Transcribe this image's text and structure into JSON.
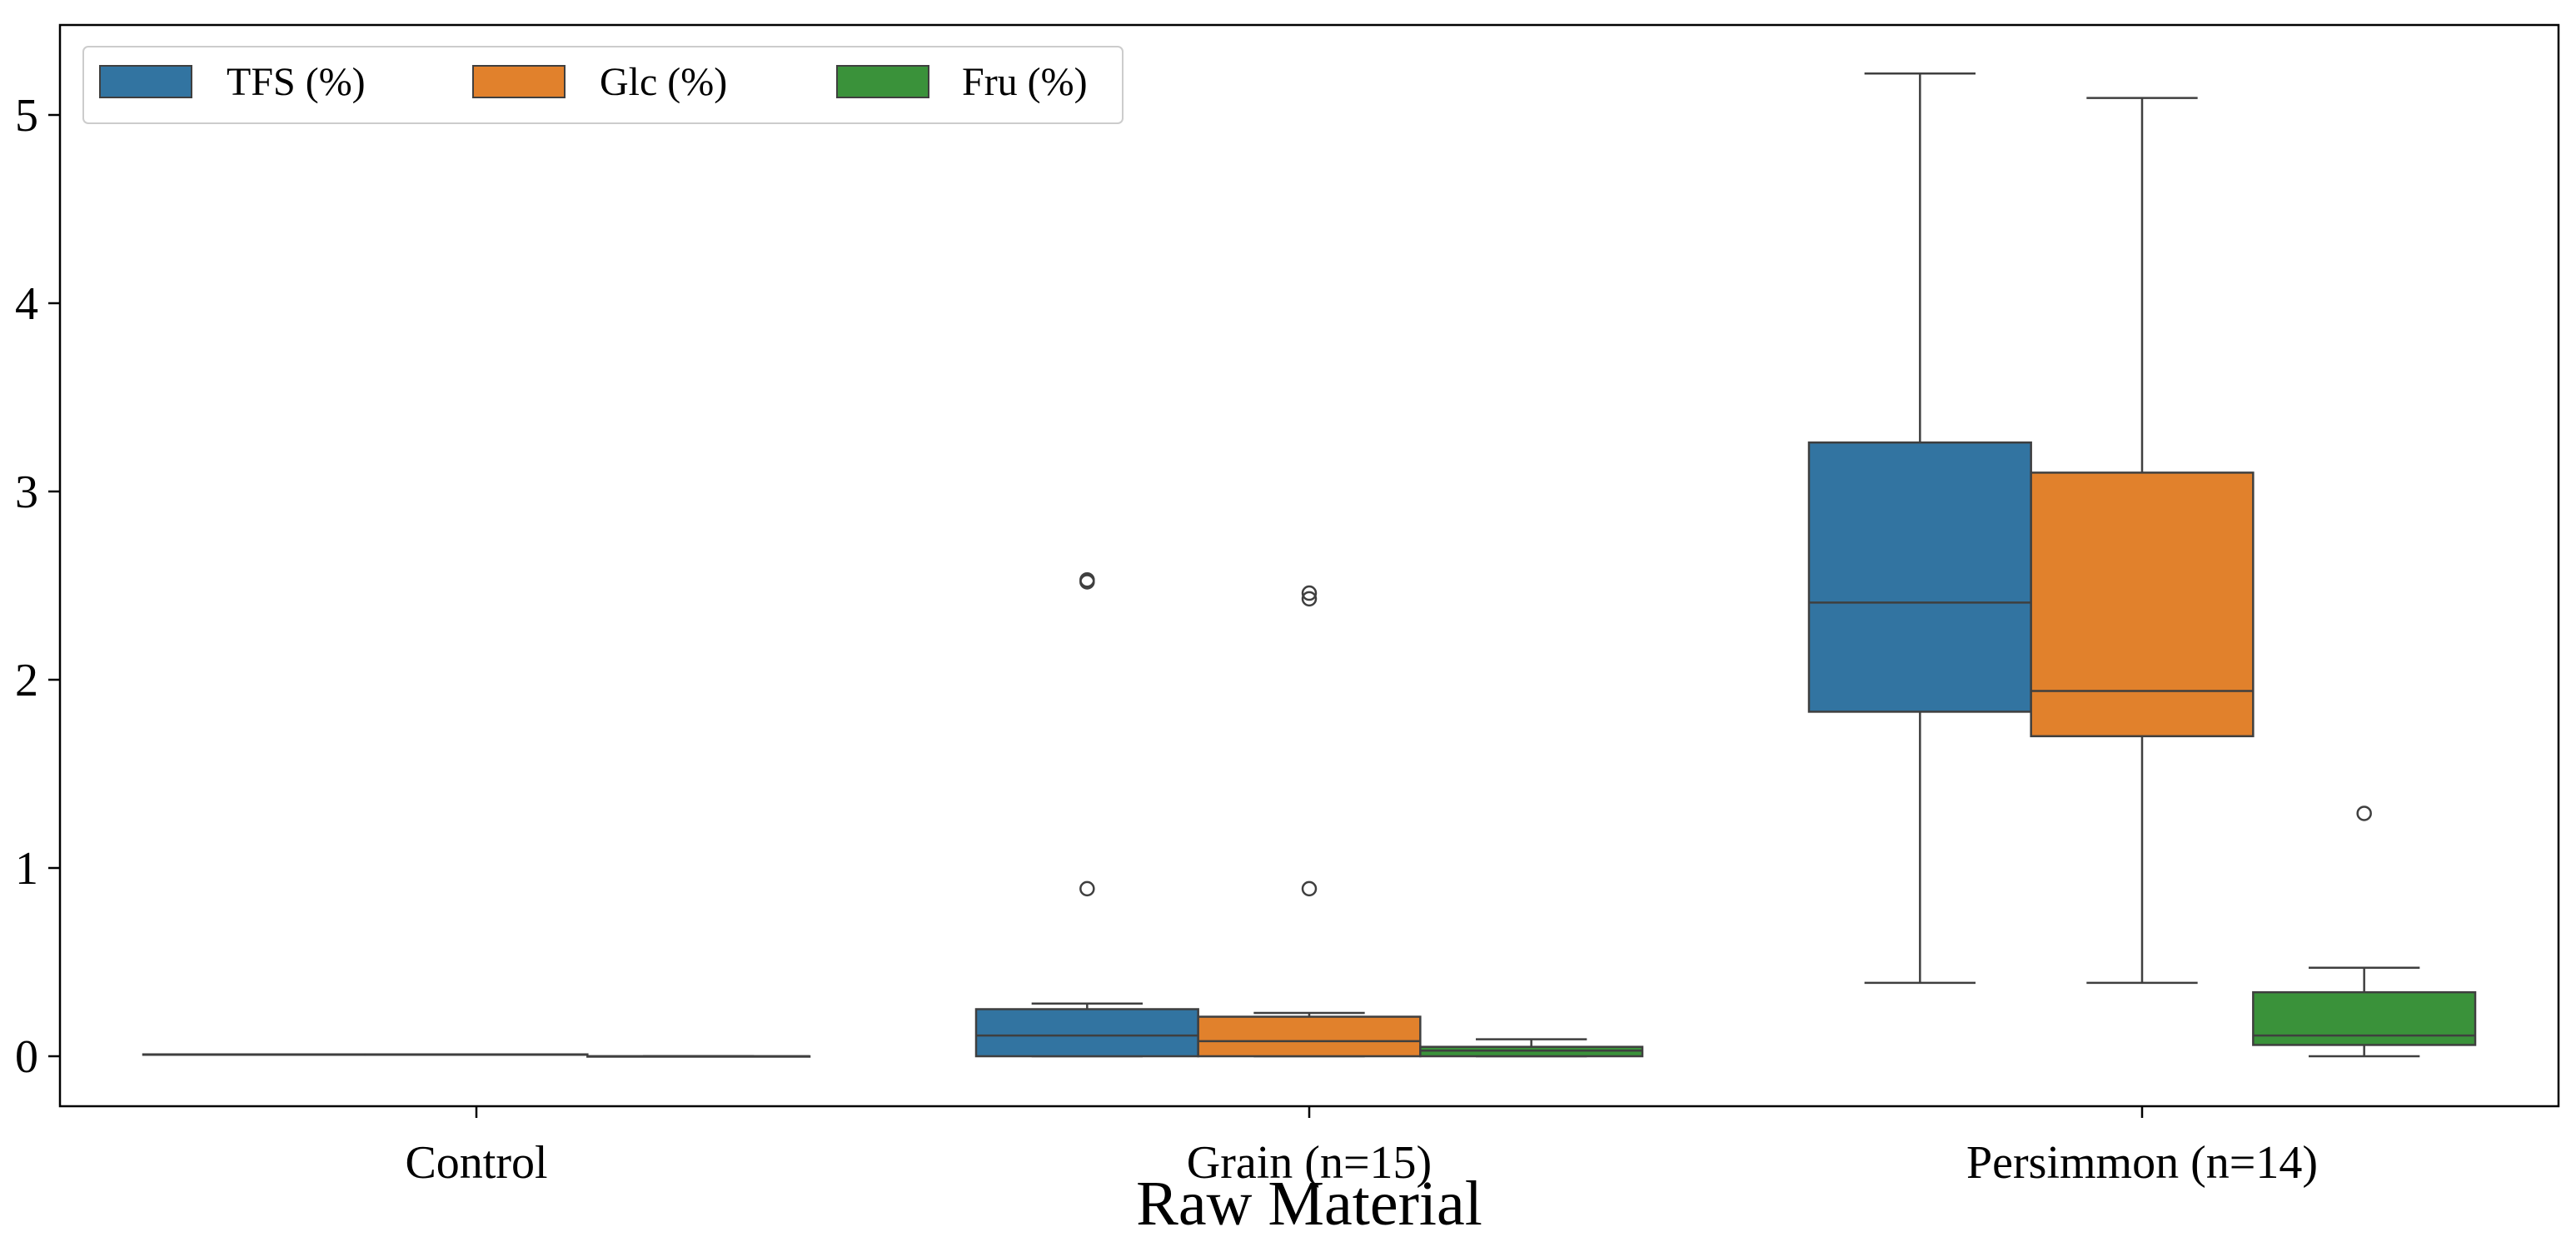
{
  "chart_data": {
    "type": "box",
    "title": "",
    "xlabel": "Raw Material",
    "ylabel": "",
    "ylim": [
      -0.26,
      5.4
    ],
    "yticks": [
      0,
      1,
      2,
      3,
      4,
      5
    ],
    "grid": false,
    "legend_position": "top-left",
    "categories": [
      "Control",
      "Grain (n=15)",
      "Persimmon (n=14)"
    ],
    "series": [
      {
        "name": "TFS (%)",
        "color": "#3274a1",
        "boxes": [
          {
            "whislo": 0.01,
            "q1": 0.01,
            "med": 0.01,
            "q3": 0.01,
            "whishi": 0.01,
            "fliers": []
          },
          {
            "whislo": 0.0,
            "q1": 0.0,
            "med": 0.11,
            "q3": 0.25,
            "whishi": 0.28,
            "fliers": [
              2.52,
              2.53,
              0.89
            ]
          },
          {
            "whislo": 0.39,
            "q1": 1.83,
            "med": 2.41,
            "q3": 3.26,
            "whishi": 5.22,
            "fliers": []
          }
        ]
      },
      {
        "name": "Glc (%)",
        "color": "#e1812c",
        "boxes": [
          {
            "whislo": 0.01,
            "q1": 0.01,
            "med": 0.01,
            "q3": 0.01,
            "whishi": 0.01,
            "fliers": []
          },
          {
            "whislo": 0.0,
            "q1": 0.0,
            "med": 0.08,
            "q3": 0.21,
            "whishi": 0.23,
            "fliers": [
              2.46,
              2.43,
              0.89
            ]
          },
          {
            "whislo": 0.39,
            "q1": 1.7,
            "med": 1.94,
            "q3": 3.1,
            "whishi": 5.09,
            "fliers": []
          }
        ]
      },
      {
        "name": "Fru (%)",
        "color": "#3a923a",
        "boxes": [
          {
            "whislo": 0.0,
            "q1": 0.0,
            "med": 0.0,
            "q3": 0.0,
            "whishi": 0.0,
            "fliers": []
          },
          {
            "whislo": 0.0,
            "q1": 0.0,
            "med": 0.03,
            "q3": 0.05,
            "whishi": 0.09,
            "fliers": []
          },
          {
            "whislo": 0.0,
            "q1": 0.06,
            "med": 0.11,
            "q3": 0.34,
            "whishi": 0.47,
            "fliers": [
              1.29
            ]
          }
        ]
      }
    ]
  }
}
